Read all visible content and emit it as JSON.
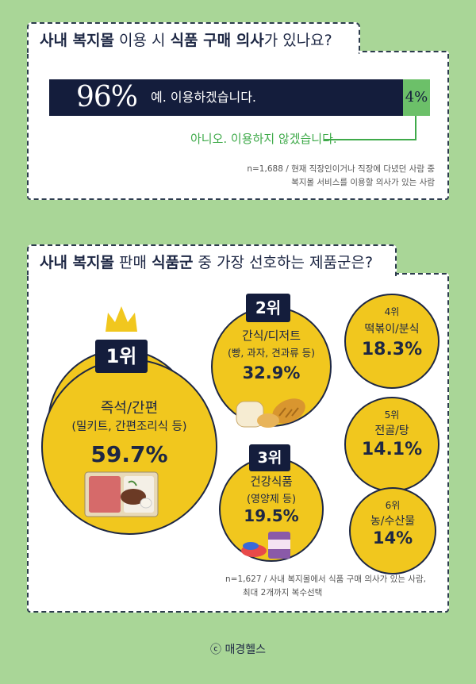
{
  "section1": {
    "title_bold_1": "사내 복지몰",
    "title_normal_1": " 이용 시 ",
    "title_bold_2": "식품 구매 의사",
    "title_normal_2": "가 있나요?",
    "note_line1": "n=1,688 / 현재 직장인이거나 직장에 다녔던 사람 중",
    "note_line2": "복지몰 서비스를 이용할 의사가 있는 사람"
  },
  "section2": {
    "title_bold_1": "사내 복지몰",
    "title_normal_1": " 판매 ",
    "title_bold_2": "식품군",
    "title_normal_2": " 중 가장 선호하는 제품군은?",
    "note_line1": "n=1,627 / 사내 복지몰에서 식품 구매 의사가 있는 사람,",
    "note_line2": "최대 2개까지 복수선택"
  },
  "copyright": "ⓒ 매경헬스",
  "colors": {
    "background": "#a9d697",
    "navy": "#141d3c",
    "yellow": "#f1c71e",
    "green": "#6cc069"
  },
  "chart_data": [
    {
      "type": "bar",
      "categories": [
        "예. 이용하겠습니다.",
        "아니오. 이용하지 않겠습니다."
      ],
      "values": [
        96,
        4
      ],
      "value_labels": [
        "96%",
        "4%"
      ],
      "stacked": true
    },
    {
      "type": "table",
      "items": [
        {
          "rank": "1위",
          "name": "즉석/간편",
          "detail": "(밀키트, 간편조리식 등)",
          "value": 59.7,
          "value_label": "59.7%"
        },
        {
          "rank": "2위",
          "name": "간식/디저트",
          "detail": "(빵, 과자, 견과류 등)",
          "value": 32.9,
          "value_label": "32.9%"
        },
        {
          "rank": "3위",
          "name": "건강식품",
          "detail": "(영양제 등)",
          "value": 19.5,
          "value_label": "19.5%"
        },
        {
          "rank": "4위",
          "name": "떡볶이/분식",
          "detail": "",
          "value": 18.3,
          "value_label": "18.3%"
        },
        {
          "rank": "5위",
          "name": "전골/탕",
          "detail": "",
          "value": 14.1,
          "value_label": "14.1%"
        },
        {
          "rank": "6위",
          "name": "농/수산물",
          "detail": "",
          "value": 14,
          "value_label": "14%"
        }
      ]
    }
  ]
}
